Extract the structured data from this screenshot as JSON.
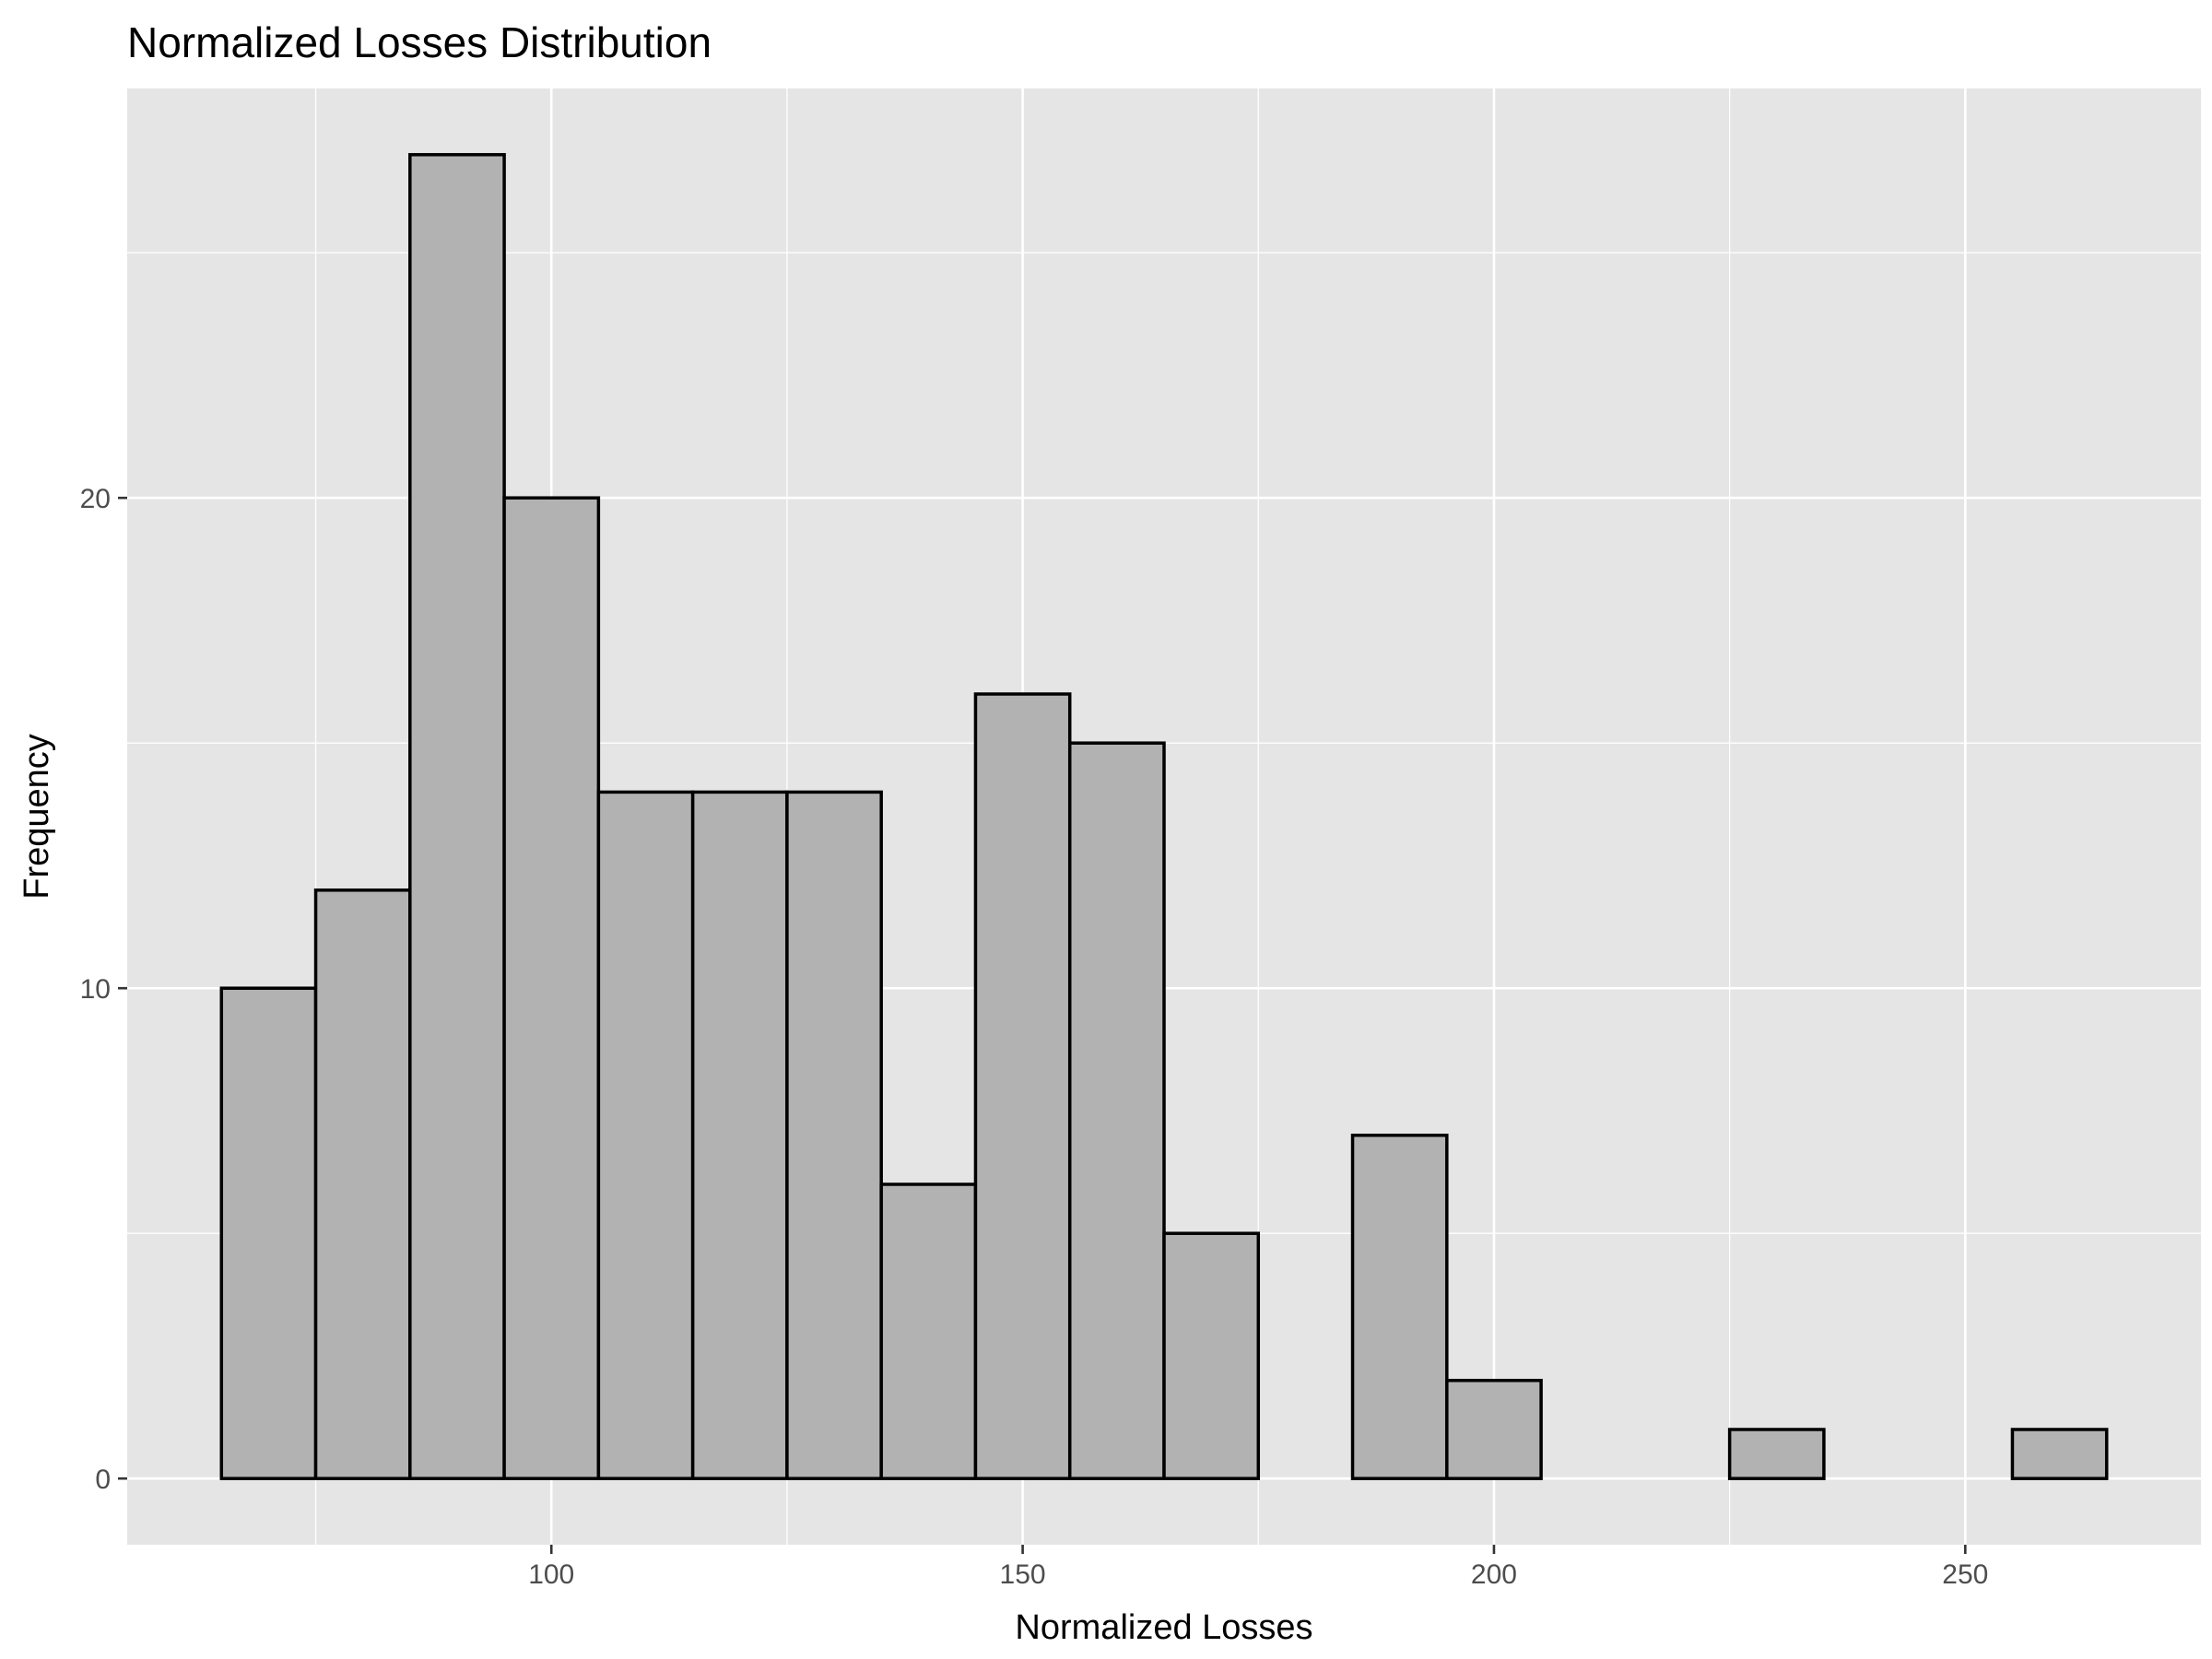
{
  "chart_data": {
    "type": "bar",
    "title": "Normalized Losses Distribution",
    "xlabel": "Normalized Losses",
    "ylabel": "Frequency",
    "bin_width": 10,
    "bins": [
      {
        "x0": 65,
        "x1": 75,
        "count": 10
      },
      {
        "x0": 75,
        "x1": 85,
        "count": 12
      },
      {
        "x0": 85,
        "x1": 95,
        "count": 27
      },
      {
        "x0": 95,
        "x1": 105,
        "count": 20
      },
      {
        "x0": 105,
        "x1": 115,
        "count": 14
      },
      {
        "x0": 115,
        "x1": 125,
        "count": 14
      },
      {
        "x0": 125,
        "x1": 135,
        "count": 14
      },
      {
        "x0": 135,
        "x1": 145,
        "count": 6
      },
      {
        "x0": 145,
        "x1": 155,
        "count": 16
      },
      {
        "x0": 155,
        "x1": 165,
        "count": 15
      },
      {
        "x0": 165,
        "x1": 175,
        "count": 5
      },
      {
        "x0": 175,
        "x1": 185,
        "count": 0
      },
      {
        "x0": 185,
        "x1": 195,
        "count": 7
      },
      {
        "x0": 195,
        "x1": 205,
        "count": 2
      },
      {
        "x0": 205,
        "x1": 215,
        "count": 0
      },
      {
        "x0": 215,
        "x1": 225,
        "count": 0
      },
      {
        "x0": 225,
        "x1": 235,
        "count": 1
      },
      {
        "x0": 235,
        "x1": 245,
        "count": 0
      },
      {
        "x0": 245,
        "x1": 255,
        "count": 0
      },
      {
        "x0": 255,
        "x1": 265,
        "count": 1
      }
    ],
    "xlim": [
      55,
      275
    ],
    "ylim": [
      -1.35,
      28.35
    ],
    "x_ticks": [
      100,
      150,
      200,
      250
    ],
    "y_ticks": [
      0,
      10,
      20
    ],
    "x_minor_ticks": [
      75,
      125,
      175,
      225
    ],
    "y_minor_ticks": [
      5,
      15,
      25
    ],
    "grid": true,
    "colors": {
      "panel_background": "#e5e5e5",
      "bar_fill": "#b2b2b2",
      "bar_outline": "#000000",
      "gridline": "#ffffff"
    }
  }
}
